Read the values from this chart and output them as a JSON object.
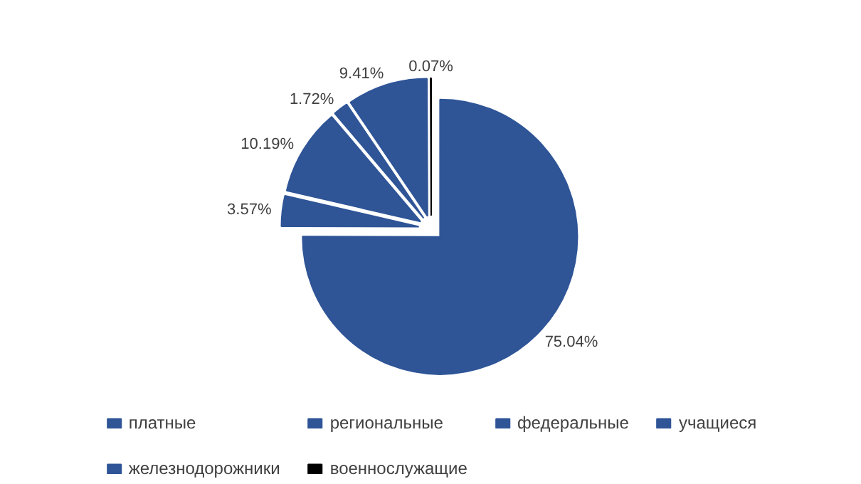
{
  "chart_data": {
    "type": "pie",
    "categories": [
      "платные",
      "региональные",
      "федеральные",
      "учащиеся",
      "железнодорожники",
      "военнослужащие"
    ],
    "values": [
      75.04,
      3.57,
      10.19,
      1.72,
      9.41,
      0.07
    ],
    "colors": [
      "#2f5597",
      "#2f5597",
      "#2f5597",
      "#2f5597",
      "#2f5597",
      "#000000"
    ],
    "value_labels": [
      "75.04%",
      "3.57%",
      "10.19%",
      "1.72%",
      "9.41%",
      "0.07%"
    ],
    "legend": "bottom"
  }
}
